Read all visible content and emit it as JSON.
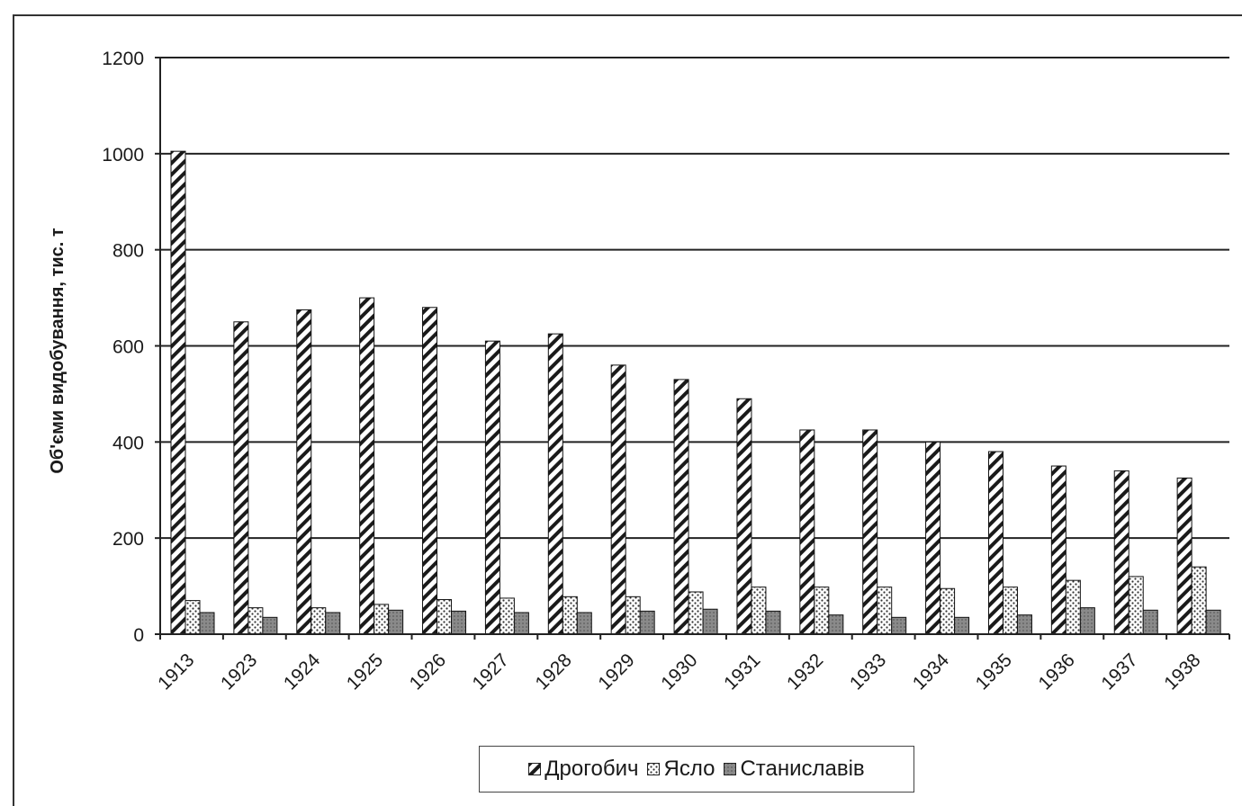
{
  "chart_data": {
    "type": "bar",
    "title": "",
    "xlabel": "",
    "ylabel": "Об'єми видобування, тис. т",
    "ylim": [
      0,
      1200
    ],
    "yticks": [
      "0",
      "200",
      "400",
      "600",
      "800",
      "1000",
      "1200"
    ],
    "grid": true,
    "legend_position": "bottom",
    "categories": [
      "1913",
      "1923",
      "1924",
      "1925",
      "1926",
      "1927",
      "1928",
      "1929",
      "1930",
      "1931",
      "1932",
      "1933",
      "1934",
      "1935",
      "1936",
      "1937",
      "1938"
    ],
    "series": [
      {
        "name": "Дрогобич",
        "pattern": "diagonal-hatch",
        "color": "#1a1a1a",
        "values": [
          1005,
          650,
          675,
          700,
          680,
          610,
          625,
          560,
          530,
          490,
          425,
          425,
          400,
          380,
          350,
          340,
          325
        ]
      },
      {
        "name": "Ясло",
        "pattern": "dotted",
        "color": "#555555",
        "values": [
          70,
          55,
          55,
          62,
          72,
          75,
          78,
          78,
          88,
          98,
          98,
          98,
          95,
          98,
          112,
          120,
          140
        ]
      },
      {
        "name": "Станиславів",
        "pattern": "solid-gray",
        "color": "#8a8a8a",
        "values": [
          45,
          35,
          45,
          50,
          48,
          45,
          45,
          48,
          52,
          48,
          40,
          35,
          35,
          40,
          55,
          50,
          50
        ]
      }
    ]
  }
}
